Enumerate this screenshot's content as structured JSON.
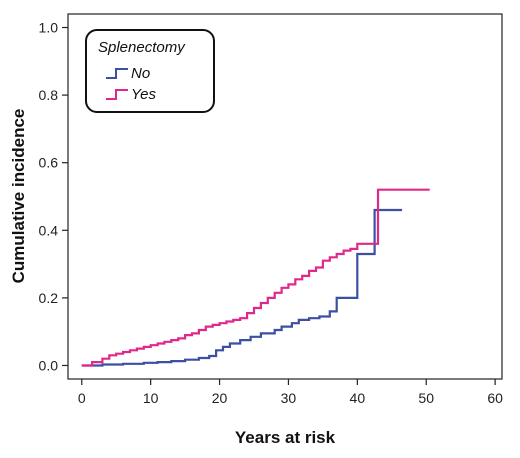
{
  "chart_data": {
    "type": "line",
    "step": true,
    "xlabel": "Years at risk",
    "ylabel": "Cumulative incidence",
    "xlim": [
      -2,
      61
    ],
    "ylim": [
      -0.04,
      1.04
    ],
    "xticks": [
      0,
      10,
      20,
      30,
      40,
      50,
      60
    ],
    "xtick_labels": [
      "0",
      "10",
      "20",
      "30",
      "40",
      "50",
      "60"
    ],
    "yticks": [
      0.0,
      0.2,
      0.4,
      0.6,
      0.8,
      1.0
    ],
    "ytick_labels": [
      "0.0",
      "0.2",
      "0.4",
      "0.6",
      "0.8",
      "1.0"
    ],
    "grid": false,
    "legend": {
      "title": "Splenectomy",
      "placement": "top-left"
    },
    "series": [
      {
        "name": "No",
        "color": "#3c4fa0",
        "points": [
          [
            0,
            0.0
          ],
          [
            3,
            0.003
          ],
          [
            6,
            0.005
          ],
          [
            9,
            0.008
          ],
          [
            11,
            0.01
          ],
          [
            13,
            0.013
          ],
          [
            15,
            0.017
          ],
          [
            17,
            0.022
          ],
          [
            18.5,
            0.028
          ],
          [
            19.5,
            0.045
          ],
          [
            20.5,
            0.055
          ],
          [
            21.5,
            0.065
          ],
          [
            23,
            0.075
          ],
          [
            24.5,
            0.085
          ],
          [
            26,
            0.095
          ],
          [
            28,
            0.105
          ],
          [
            29,
            0.115
          ],
          [
            30.5,
            0.125
          ],
          [
            31.5,
            0.135
          ],
          [
            33,
            0.14
          ],
          [
            34.5,
            0.145
          ],
          [
            36,
            0.16
          ],
          [
            37,
            0.2
          ],
          [
            40,
            0.33
          ],
          [
            42.5,
            0.46
          ],
          [
            44,
            0.46
          ],
          [
            46.5,
            0.46
          ]
        ]
      },
      {
        "name": "Yes",
        "color": "#e0288c",
        "points": [
          [
            0,
            0.0
          ],
          [
            1.5,
            0.01
          ],
          [
            3,
            0.02
          ],
          [
            4,
            0.03
          ],
          [
            5,
            0.035
          ],
          [
            6,
            0.04
          ],
          [
            7,
            0.045
          ],
          [
            8,
            0.05
          ],
          [
            9,
            0.055
          ],
          [
            10,
            0.06
          ],
          [
            11,
            0.065
          ],
          [
            12,
            0.07
          ],
          [
            13,
            0.075
          ],
          [
            14,
            0.08
          ],
          [
            15,
            0.09
          ],
          [
            16,
            0.095
          ],
          [
            17,
            0.105
          ],
          [
            18,
            0.115
          ],
          [
            19,
            0.12
          ],
          [
            20,
            0.125
          ],
          [
            21,
            0.13
          ],
          [
            22,
            0.135
          ],
          [
            23,
            0.14
          ],
          [
            24,
            0.155
          ],
          [
            25,
            0.17
          ],
          [
            26,
            0.185
          ],
          [
            27,
            0.2
          ],
          [
            28,
            0.215
          ],
          [
            29,
            0.23
          ],
          [
            30,
            0.24
          ],
          [
            31,
            0.255
          ],
          [
            32,
            0.265
          ],
          [
            33,
            0.28
          ],
          [
            34,
            0.29
          ],
          [
            35,
            0.31
          ],
          [
            36,
            0.32
          ],
          [
            37,
            0.33
          ],
          [
            38,
            0.34
          ],
          [
            39,
            0.345
          ],
          [
            40,
            0.36
          ],
          [
            43,
            0.52
          ],
          [
            45,
            0.52
          ],
          [
            50.5,
            0.52
          ]
        ]
      }
    ]
  }
}
